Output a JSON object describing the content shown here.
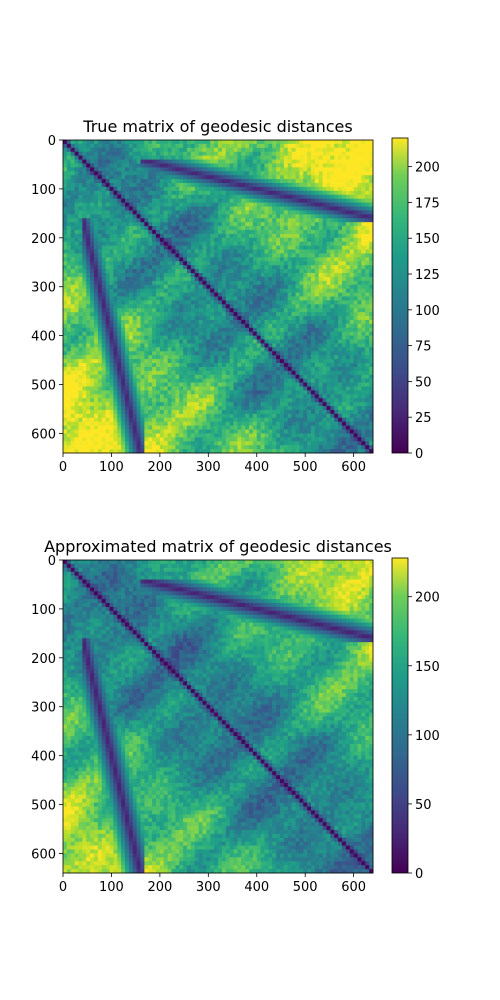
{
  "chart_data": [
    {
      "type": "heatmap",
      "title": "True matrix of geodesic distances",
      "x_ticks": [
        0,
        100,
        200,
        300,
        400,
        500,
        600
      ],
      "y_ticks": [
        0,
        100,
        200,
        300,
        400,
        500,
        600
      ],
      "xlim": [
        0,
        640
      ],
      "ylim": [
        640,
        0
      ],
      "matrix_size": 640,
      "block_boundaries": [
        40,
        160
      ],
      "colormap": "viridis",
      "colorbar": {
        "range": [
          0,
          220
        ],
        "ticks": [
          0,
          25,
          50,
          75,
          100,
          125,
          150,
          175,
          200
        ]
      },
      "grid": false
    },
    {
      "type": "heatmap",
      "title": "Approximated matrix of geodesic distances",
      "x_ticks": [
        0,
        100,
        200,
        300,
        400,
        500,
        600
      ],
      "y_ticks": [
        0,
        100,
        200,
        300,
        400,
        500,
        600
      ],
      "xlim": [
        0,
        640
      ],
      "ylim": [
        640,
        0
      ],
      "matrix_size": 640,
      "block_boundaries": [
        40,
        160
      ],
      "colormap": "viridis",
      "colorbar": {
        "range": [
          0,
          228
        ],
        "ticks": [
          0,
          50,
          100,
          150,
          200
        ]
      },
      "grid": false
    }
  ]
}
